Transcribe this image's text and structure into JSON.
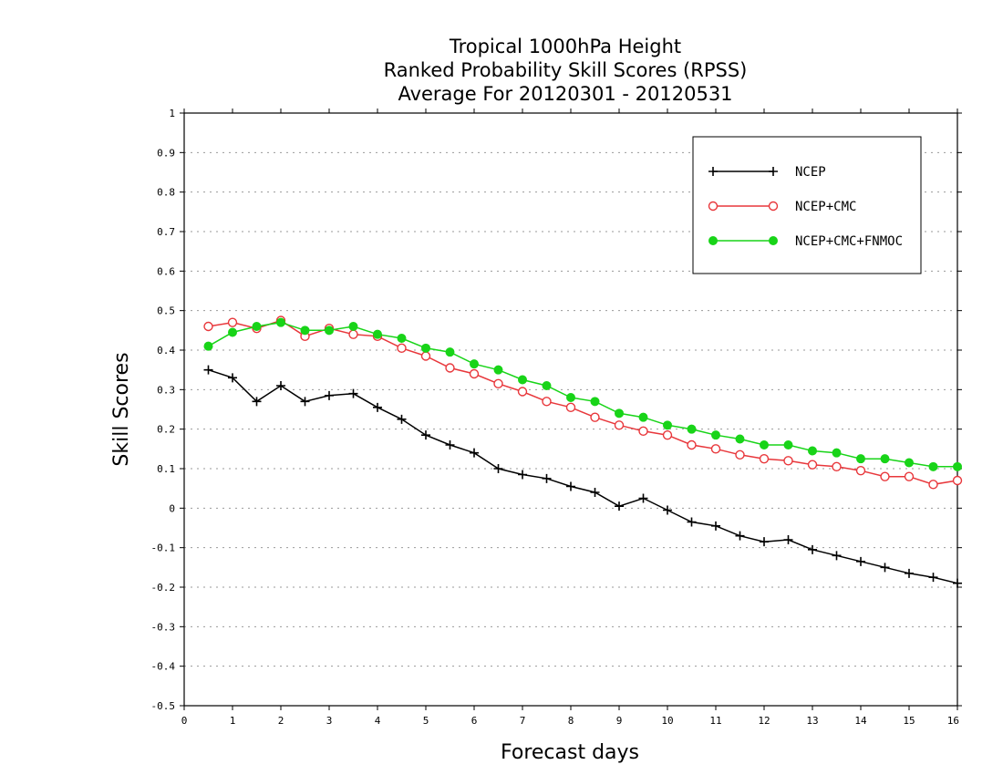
{
  "chart_data": {
    "type": "line",
    "title_lines": [
      "Tropical 1000hPa Height",
      "Ranked Probability Skill Scores (RPSS)",
      "Average For 20120301 - 20120531"
    ],
    "xlabel": "Forecast days",
    "ylabel": "Skill Scores",
    "xlim": [
      0,
      16
    ],
    "ylim": [
      -0.5,
      1
    ],
    "x_ticks": [
      0,
      1,
      2,
      3,
      4,
      5,
      6,
      7,
      8,
      9,
      10,
      11,
      12,
      13,
      14,
      15,
      16
    ],
    "x_tick_labels": [
      "0",
      "1",
      "2",
      "3",
      "4",
      "5",
      "6",
      "7",
      "8",
      "9",
      "10",
      "11",
      "12",
      "13",
      "14",
      "15",
      "16"
    ],
    "y_ticks": [
      -0.5,
      -0.4,
      -0.3,
      -0.2,
      -0.1,
      0,
      0.1,
      0.2,
      0.3,
      0.4,
      0.5,
      0.6,
      0.7,
      0.8,
      0.9,
      1
    ],
    "y_tick_labels": [
      "-0.5",
      "-0.4",
      "-0.3",
      "-0.2",
      "-0.1",
      "0",
      "0.1",
      "0.2",
      "0.3",
      "0.4",
      "0.5",
      "0.6",
      "0.7",
      "0.8",
      "0.9",
      "1"
    ],
    "grid": "horizontal dotted",
    "legend_position": "top-right",
    "x": [
      0.5,
      1,
      1.5,
      2,
      2.5,
      3,
      3.5,
      4,
      4.5,
      5,
      5.5,
      6,
      6.5,
      7,
      7.5,
      8,
      8.5,
      9,
      9.5,
      10,
      10.5,
      11,
      11.5,
      12,
      12.5,
      13,
      13.5,
      14,
      14.5,
      15,
      15.5,
      16
    ],
    "series": [
      {
        "name": "NCEP",
        "color": "#000000",
        "marker": "plus",
        "values": [
          0.35,
          0.33,
          0.27,
          0.31,
          0.27,
          0.285,
          0.29,
          0.255,
          0.225,
          0.185,
          0.16,
          0.14,
          0.1,
          0.085,
          0.075,
          0.055,
          0.04,
          0.005,
          0.025,
          -0.005,
          -0.035,
          -0.045,
          -0.07,
          -0.085,
          -0.08,
          -0.105,
          -0.12,
          -0.135,
          -0.15,
          -0.165,
          -0.175,
          -0.19
        ]
      },
      {
        "name": "NCEP+CMC",
        "color": "#e8373b",
        "marker": "open-circle",
        "values": [
          0.46,
          0.47,
          0.455,
          0.475,
          0.435,
          0.455,
          0.44,
          0.435,
          0.405,
          0.385,
          0.355,
          0.34,
          0.315,
          0.295,
          0.27,
          0.255,
          0.23,
          0.21,
          0.195,
          0.185,
          0.16,
          0.15,
          0.135,
          0.125,
          0.12,
          0.11,
          0.105,
          0.095,
          0.08,
          0.08,
          0.06,
          0.07
        ]
      },
      {
        "name": "NCEP+CMC+FNMOC",
        "color": "#18d418",
        "marker": "filled-circle",
        "values": [
          0.41,
          0.445,
          0.46,
          0.47,
          0.45,
          0.45,
          0.46,
          0.44,
          0.43,
          0.405,
          0.395,
          0.365,
          0.35,
          0.325,
          0.31,
          0.28,
          0.27,
          0.24,
          0.23,
          0.21,
          0.2,
          0.185,
          0.175,
          0.16,
          0.16,
          0.145,
          0.14,
          0.125,
          0.125,
          0.115,
          0.105,
          0.105
        ]
      }
    ]
  }
}
